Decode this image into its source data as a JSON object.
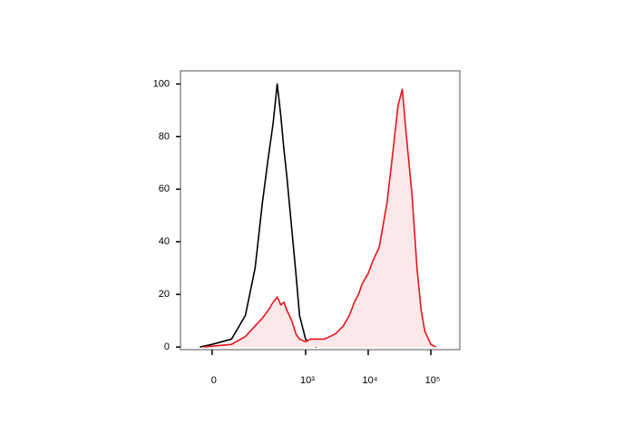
{
  "chart_data": {
    "type": "histogram-overlay",
    "xscale": "biexponential",
    "xlim": [
      -93,
      290000
    ],
    "ylim": [
      -1,
      105
    ],
    "xticks": [
      0,
      {
        "value": 1000,
        "label": "10³"
      },
      {
        "value": 10000,
        "label": "10⁴"
      },
      {
        "value": 100000,
        "label": "10⁵"
      }
    ],
    "yticks": [
      0,
      20,
      40,
      60,
      80,
      100
    ],
    "series": [
      {
        "color": "#000000",
        "fill": "none",
        "x": [
          -30,
          0,
          50,
          100,
          150,
          200,
          250,
          300,
          350,
          400,
          450,
          500,
          600,
          700,
          800,
          1000,
          1200,
          1500
        ],
        "values": [
          0,
          1,
          3,
          12,
          30,
          55,
          72,
          85,
          100,
          88,
          75,
          65,
          45,
          28,
          12,
          3,
          1,
          0
        ]
      },
      {
        "color": "#e8141c",
        "fill": "#fde8e9",
        "x": [
          -20,
          50,
          100,
          150,
          200,
          250,
          300,
          350,
          400,
          450,
          500,
          600,
          700,
          800,
          1000,
          1200,
          1500,
          2000,
          3000,
          4000,
          5000,
          6000,
          7000,
          8000,
          10000,
          12000,
          15000,
          20000,
          25000,
          30000,
          35000,
          40000,
          50000,
          60000,
          70000,
          80000,
          100000,
          120000
        ],
        "values": [
          0,
          1,
          4,
          8,
          11,
          14,
          17,
          19,
          16,
          17,
          14,
          10,
          5,
          3,
          2,
          3,
          3,
          3,
          5,
          8,
          12,
          17,
          20,
          24,
          28,
          33,
          38,
          55,
          75,
          92,
          98,
          82,
          58,
          30,
          14,
          6,
          1,
          0
        ]
      }
    ]
  }
}
